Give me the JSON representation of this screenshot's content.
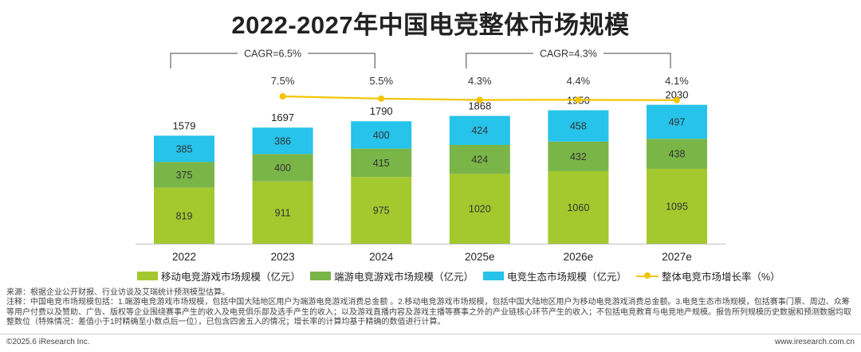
{
  "title": "2022-2027年中国电竞整体市场规模",
  "legend": {
    "mobile": "移动电竞游戏市场规模（亿元）",
    "pc": "端游电竞游戏市场规模（亿元）",
    "ecosystem": "电竞生态市场规模（亿元）",
    "growth": "整体电竞市场增长率（%）"
  },
  "notes": {
    "source": "来源：根据企业公开财报、行业访谈及艾瑞统计预测模型估算。",
    "remark": "注释：中国电竞市场规模包括：1.端游电竞游戏市场规模，包括中国大陆地区用户为端游电竞游戏消费总金额 。2.移动电竞游戏市场规模，包括中国大陆地区用户为移动电竞游戏消费总金额。3.电竞生态市场规模，包括赛事门票、周边、众筹等用户付费以及赞助、广告、版权等企业围绕赛事产生的收入及电竞俱乐部及选手产生的收入；以及游戏直播内容及游戏主播等赛事之外的产业链核心环节产生的收入；不包括电竞教育与电竞地产规模。报告所列规模历史数据和预测数据均取整数位（特殊情况：差值小于1时精确至小数点后一位），已包含四舍五入的情况；增长率的计算均基于精确的数值进行计算。"
  },
  "footer": {
    "left": "©2025.6 iResearch Inc.",
    "right": "www.iresearch.com.cn"
  },
  "colors": {
    "mobile": "#a3c92e",
    "pc": "#7ab547",
    "ecosystem": "#26c3ea",
    "growth": "#f2c500",
    "axis": "#bfbfbf"
  },
  "chart_data": {
    "type": "bar",
    "stacked": true,
    "categories": [
      "2022",
      "2023",
      "2024",
      "2025e",
      "2026e",
      "2027e"
    ],
    "series": [
      {
        "name": "移动电竞游戏市场规模（亿元）",
        "key": "mobile",
        "values": [
          819,
          911,
          975,
          1020,
          1060,
          1095
        ]
      },
      {
        "name": "端游电竞游戏市场规模（亿元）",
        "key": "pc",
        "values": [
          375,
          400,
          415,
          424,
          432,
          438
        ]
      },
      {
        "name": "电竞生态市场规模（亿元）",
        "key": "ecosystem",
        "values": [
          385,
          386,
          400,
          424,
          458,
          497
        ]
      }
    ],
    "totals": [
      1579,
      1697,
      1790,
      1868,
      1950,
      2030
    ],
    "line": {
      "name": "整体电竞市场增长率（%）",
      "values": [
        7.5,
        5.5,
        4.3,
        4.4,
        4.1
      ],
      "labels": [
        "7.5%",
        "5.5%",
        "4.3%",
        "4.4%",
        "4.1%"
      ],
      "categories": [
        "2023",
        "2024",
        "2025e",
        "2026e",
        "2027e"
      ]
    },
    "annotations": [
      {
        "text": "CAGR=6.5%",
        "from": "2022",
        "to": "2024"
      },
      {
        "text": "CAGR=4.3%",
        "from": "2025e",
        "to": "2027e"
      }
    ],
    "legend_position": "bottom"
  }
}
